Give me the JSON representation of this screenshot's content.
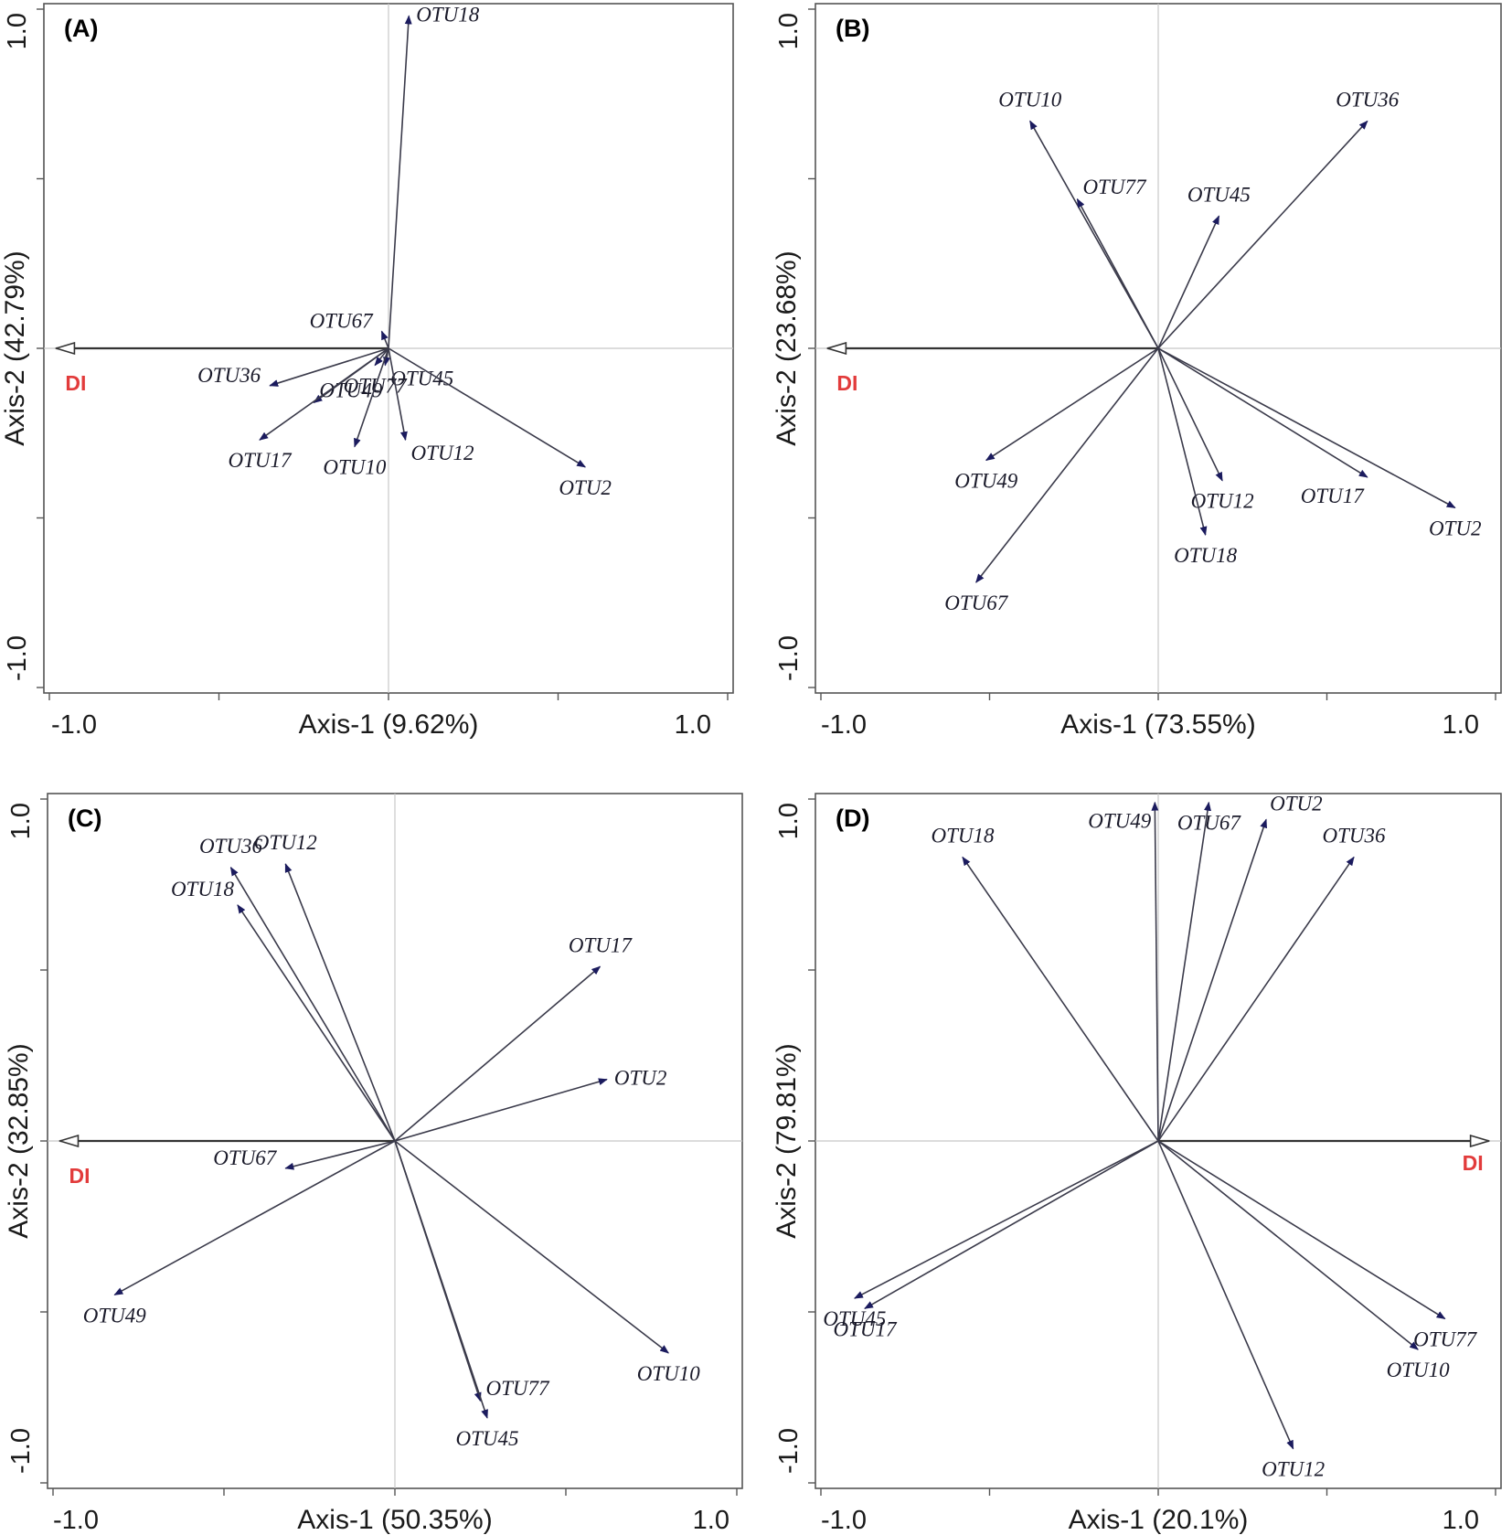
{
  "colors": {
    "arrow": "#1b1b5e",
    "env": "#e23b3b",
    "frame": "#555555",
    "grid": "#c8c8c8",
    "line": "#3a3a4a"
  },
  "chart_data": [
    {
      "type": "biplot",
      "panel": "(A)",
      "xlabel": "Axis-1 (9.62%)",
      "ylabel": "Axis-2 (42.79%)",
      "xlim": [
        -1.0,
        1.0
      ],
      "ylim": [
        -1.0,
        1.0
      ],
      "x_tick_labels": [
        "-1.0",
        "1.0"
      ],
      "y_tick_labels": [
        "1.0",
        "-1.0"
      ],
      "env": {
        "name": "DI",
        "x": -0.98,
        "y": 0.0,
        "label_side": "below"
      },
      "vectors": [
        {
          "name": "OTU18",
          "x": 0.06,
          "y": 0.98,
          "label_side": "right"
        },
        {
          "name": "OTU67",
          "x": -0.02,
          "y": 0.05,
          "label_side": "left"
        },
        {
          "name": "OTU36",
          "x": -0.35,
          "y": -0.11,
          "label_side": "left"
        },
        {
          "name": "OTU49",
          "x": -0.22,
          "y": -0.16,
          "label_side": "rightabove"
        },
        {
          "name": "OTU77",
          "x": -0.04,
          "y": -0.05,
          "label_side": "below"
        },
        {
          "name": "OTU45",
          "x": -0.01,
          "y": -0.05,
          "label_side": "rightbelow"
        },
        {
          "name": "OTU17",
          "x": -0.38,
          "y": -0.27,
          "label_side": "below"
        },
        {
          "name": "OTU10",
          "x": -0.1,
          "y": -0.29,
          "label_side": "below"
        },
        {
          "name": "OTU12",
          "x": 0.05,
          "y": -0.27,
          "label_side": "rightbelow"
        },
        {
          "name": "OTU2",
          "x": 0.58,
          "y": -0.35,
          "label_side": "below"
        }
      ]
    },
    {
      "type": "biplot",
      "panel": "(B)",
      "xlabel": "Axis-1 (73.55%)",
      "ylabel": "Axis-2 (23.68%)",
      "xlim": [
        -1.0,
        1.0
      ],
      "ylim": [
        -1.0,
        1.0
      ],
      "x_tick_labels": [
        "-1.0",
        "1.0"
      ],
      "y_tick_labels": [
        "1.0",
        "-1.0"
      ],
      "env": {
        "name": "DI",
        "x": -0.98,
        "y": 0.0,
        "label_side": "below"
      },
      "vectors": [
        {
          "name": "OTU10",
          "x": -0.38,
          "y": 0.67,
          "label_side": "above"
        },
        {
          "name": "OTU36",
          "x": 0.62,
          "y": 0.67,
          "label_side": "above"
        },
        {
          "name": "OTU77",
          "x": -0.24,
          "y": 0.44,
          "label_side": "rightabove"
        },
        {
          "name": "OTU45",
          "x": 0.18,
          "y": 0.39,
          "label_side": "above"
        },
        {
          "name": "OTU49",
          "x": -0.51,
          "y": -0.33,
          "label_side": "below"
        },
        {
          "name": "OTU67",
          "x": -0.54,
          "y": -0.69,
          "label_side": "below"
        },
        {
          "name": "OTU12",
          "x": 0.19,
          "y": -0.39,
          "label_side": "below"
        },
        {
          "name": "OTU18",
          "x": 0.14,
          "y": -0.55,
          "label_side": "below"
        },
        {
          "name": "OTU17",
          "x": 0.62,
          "y": -0.38,
          "label_side": "belowleft"
        },
        {
          "name": "OTU2",
          "x": 0.88,
          "y": -0.47,
          "label_side": "below"
        }
      ]
    },
    {
      "type": "biplot",
      "panel": "(C)",
      "xlabel": "Axis-1 (50.35%)",
      "ylabel": "Axis-2 (32.85%)",
      "xlim": [
        -1.0,
        1.0
      ],
      "ylim": [
        -1.0,
        1.0
      ],
      "x_tick_labels": [
        "-1.0",
        "1.0"
      ],
      "y_tick_labels": [
        "1.0",
        "-1.0"
      ],
      "env": {
        "name": "DI",
        "x": -0.98,
        "y": 0.0,
        "label_side": "below"
      },
      "vectors": [
        {
          "name": "OTU36",
          "x": -0.48,
          "y": 0.8,
          "label_side": "above"
        },
        {
          "name": "OTU12",
          "x": -0.32,
          "y": 0.81,
          "label_side": "above"
        },
        {
          "name": "OTU18",
          "x": -0.46,
          "y": 0.69,
          "label_side": "aboveleft"
        },
        {
          "name": "OTU17",
          "x": 0.6,
          "y": 0.51,
          "label_side": "above"
        },
        {
          "name": "OTU2",
          "x": 0.62,
          "y": 0.18,
          "label_side": "right"
        },
        {
          "name": "OTU67",
          "x": -0.32,
          "y": -0.08,
          "label_side": "left"
        },
        {
          "name": "OTU49",
          "x": -0.82,
          "y": -0.45,
          "label_side": "below"
        },
        {
          "name": "OTU10",
          "x": 0.8,
          "y": -0.62,
          "label_side": "below"
        },
        {
          "name": "OTU77",
          "x": 0.25,
          "y": -0.76,
          "label_side": "rightabove"
        },
        {
          "name": "OTU45",
          "x": 0.27,
          "y": -0.81,
          "label_side": "below"
        }
      ]
    },
    {
      "type": "biplot",
      "panel": "(D)",
      "xlabel": "Axis-1 (20.1%)",
      "ylabel": "Axis-2 (79.81%)",
      "xlim": [
        -1.0,
        1.0
      ],
      "ylim": [
        -1.0,
        1.0
      ],
      "x_tick_labels": [
        "-1.0",
        "1.0"
      ],
      "y_tick_labels": [
        "1.0",
        "-1.0"
      ],
      "env": {
        "name": "DI",
        "x": 0.98,
        "y": 0.0,
        "label_side": "belowleft"
      },
      "vectors": [
        {
          "name": "OTU49",
          "x": -0.01,
          "y": 0.99,
          "label_side": "belowleft"
        },
        {
          "name": "OTU67",
          "x": 0.15,
          "y": 0.99,
          "label_side": "below"
        },
        {
          "name": "OTU2",
          "x": 0.32,
          "y": 0.94,
          "label_side": "aboveright"
        },
        {
          "name": "OTU18",
          "x": -0.58,
          "y": 0.83,
          "label_side": "above"
        },
        {
          "name": "OTU36",
          "x": 0.58,
          "y": 0.83,
          "label_side": "above"
        },
        {
          "name": "OTU45",
          "x": -0.9,
          "y": -0.46,
          "label_side": "below"
        },
        {
          "name": "OTU17",
          "x": -0.87,
          "y": -0.49,
          "label_side": "below"
        },
        {
          "name": "OTU77",
          "x": 0.85,
          "y": -0.52,
          "label_side": "below"
        },
        {
          "name": "OTU10",
          "x": 0.77,
          "y": -0.61,
          "label_side": "below"
        },
        {
          "name": "OTU12",
          "x": 0.4,
          "y": -0.9,
          "label_side": "below"
        }
      ]
    }
  ]
}
